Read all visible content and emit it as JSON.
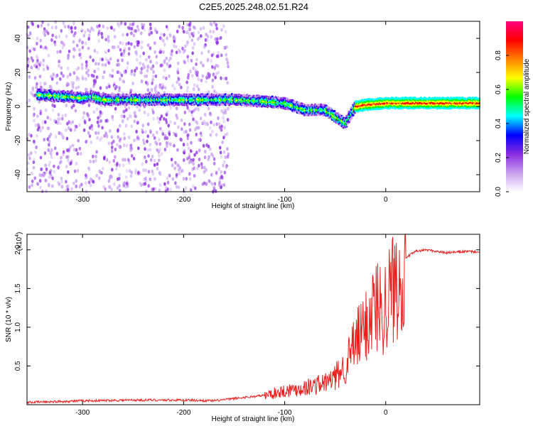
{
  "figure": {
    "title": "C2E5.2025.248.02.51.R24"
  },
  "chart_data": [
    {
      "type": "heatmap",
      "title": "C2E5.2025.248.02.51.R24",
      "xlabel": "Height of straight line (km)",
      "ylabel": "Frequency (Hz)",
      "xlim": [
        -355,
        93
      ],
      "ylim": [
        -50,
        50
      ],
      "xticks": [
        -300,
        -200,
        -100,
        0
      ],
      "yticks": [
        -40,
        -20,
        0,
        20,
        40
      ],
      "colorbar": {
        "label": "Normalized spectral amplitude",
        "range": [
          0,
          1
        ],
        "ticks": [
          "0.0",
          "0.2",
          "0.4",
          "0.6",
          "0.8"
        ],
        "colormap": [
          "#ffffff",
          "#c8a0f0",
          "#8a2be2",
          "#0000ff",
          "#00ffff",
          "#00ff00",
          "#ffff00",
          "#ff8000",
          "#ff0000",
          "#ff0080"
        ]
      },
      "ridge": {
        "x": [
          -345,
          -320,
          -300,
          -290,
          -280,
          -200,
          -150,
          -120,
          -100,
          -80,
          -60,
          -50,
          -40,
          -30,
          -20,
          0,
          20,
          50,
          93
        ],
        "y": [
          7,
          6,
          5,
          6,
          4,
          4,
          4,
          3,
          2,
          -2,
          -2,
          -6,
          -10,
          0,
          1,
          2,
          2,
          2,
          2
        ]
      },
      "grid": false
    },
    {
      "type": "line",
      "xlabel": "Height of straight line (km)",
      "ylabel": "SNR (10 * v/v)",
      "yscale_label": "(x10",
      "yscale_exp": "4",
      "yscale_close": ")",
      "xlim": [
        -355,
        93
      ],
      "ylim": [
        0,
        2.2
      ],
      "xticks": [
        -300,
        -200,
        -100,
        0
      ],
      "yticks": [
        "0.5",
        "1.0",
        "1.5",
        "2.0"
      ],
      "series": [
        {
          "color": "#e8211f",
          "x": [
            -355,
            -300,
            -250,
            -200,
            -170,
            -150,
            -120,
            -100,
            -80,
            -60,
            -50,
            -40,
            -30,
            -20,
            -15,
            -10,
            -5,
            0,
            5,
            10,
            15,
            20,
            30,
            40,
            60,
            80,
            93
          ],
          "y": [
            0.03,
            0.05,
            0.06,
            0.06,
            0.05,
            0.08,
            0.12,
            0.18,
            0.22,
            0.28,
            0.35,
            0.5,
            0.8,
            1.0,
            1.2,
            1.3,
            1.25,
            1.3,
            1.45,
            1.6,
            1.75,
            1.9,
            1.98,
            2.0,
            1.96,
            1.98,
            1.97
          ]
        }
      ],
      "grid": false
    }
  ]
}
